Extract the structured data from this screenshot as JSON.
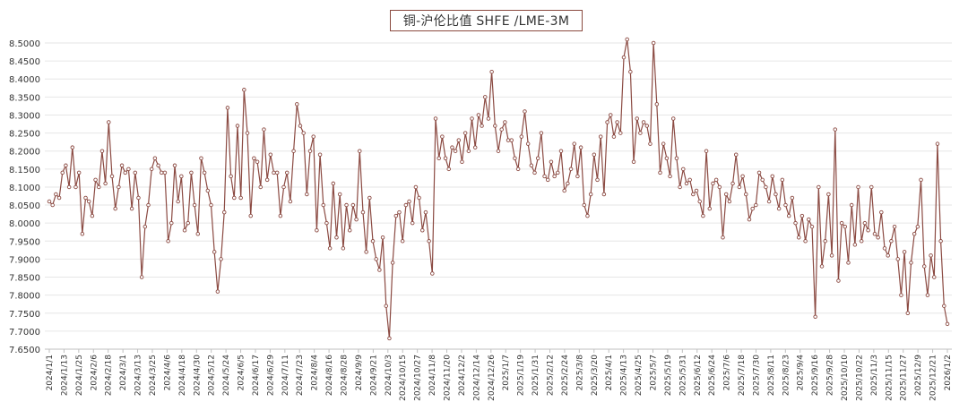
{
  "chart_data": {
    "type": "line",
    "title": "铜-沪伦比值 SHFE /LME-3M",
    "xlabel": "",
    "ylabel": "",
    "ylim": [
      7.65,
      8.5
    ],
    "yticks": [
      "8.5000",
      "8.4500",
      "8.4000",
      "8.3500",
      "8.3000",
      "8.2500",
      "8.2000",
      "8.1500",
      "8.1000",
      "8.0500",
      "8.0000",
      "7.9500",
      "7.9000",
      "7.8500",
      "7.8000",
      "7.7500",
      "7.7000",
      "7.6500"
    ],
    "xticks": [
      "2024/1/1",
      "2024/1/13",
      "2024/1/25",
      "2024/2/6",
      "2024/2/18",
      "2024/3/1",
      "2024/3/13",
      "2024/3/25",
      "2024/4/6",
      "2024/4/18",
      "2024/4/30",
      "2024/5/12",
      "2024/5/24",
      "2024/6/5",
      "2024/6/17",
      "2024/6/29",
      "2024/7/11",
      "2024/7/23",
      "2024/8/4",
      "2024/8/16",
      "2024/8/28",
      "2024/9/9",
      "2024/9/21",
      "2024/10/3",
      "2024/10/15",
      "2024/10/27",
      "2024/11/8",
      "2024/11/20",
      "2024/12/2",
      "2024/12/14",
      "2024/12/26",
      "2025/1/7",
      "2025/1/19",
      "2025/1/31",
      "2025/2/12",
      "2025/2/24",
      "2025/3/8",
      "2025/3/20",
      "2025/4/1",
      "2025/4/13",
      "2025/4/25",
      "2025/5/7",
      "2025/5/19",
      "2025/5/31",
      "2025/6/12",
      "2025/6/24",
      "2025/7/6",
      "2025/7/18",
      "2025/7/30",
      "2025/8/11",
      "2025/8/23",
      "2025/9/4",
      "2025/9/16",
      "2025/9/28",
      "2025/10/10",
      "2025/10/22",
      "2025/11/3",
      "2025/11/15",
      "2025/11/27",
      "2025/12/9",
      "2025/12/21",
      "2026/1/2"
    ],
    "grid": true,
    "legend": "none",
    "colors": {
      "line": "#8b4a42",
      "marker_fill": "#ffffff",
      "grid": "#e6e6e6",
      "title_border": "#8a4a3f"
    },
    "series": [
      {
        "values": [
          8.06,
          8.05,
          8.08,
          8.07,
          8.14,
          8.16,
          8.1,
          8.21,
          8.1,
          8.14,
          7.97,
          8.07,
          8.06,
          8.02,
          8.12,
          8.1,
          8.2,
          8.11,
          8.28,
          8.13,
          8.04,
          8.1,
          8.16,
          8.14,
          8.15,
          8.04,
          8.14,
          8.07,
          7.85,
          7.99,
          8.05,
          8.15,
          8.18,
          8.16,
          8.14,
          8.14,
          7.95,
          8.0,
          8.16,
          8.06,
          8.13,
          7.98,
          8.0,
          8.14,
          8.05,
          7.97,
          8.18,
          8.14,
          8.09,
          8.05,
          7.92,
          7.81,
          7.9,
          8.03,
          8.32,
          8.13,
          8.07,
          8.27,
          8.07,
          8.37,
          8.25,
          8.02,
          8.18,
          8.17,
          8.1,
          8.26,
          8.12,
          8.19,
          8.14,
          8.14,
          8.02,
          8.1,
          8.14,
          8.06,
          8.2,
          8.33,
          8.27,
          8.25,
          8.08,
          8.2,
          8.24,
          7.98,
          8.19,
          8.05,
          8.0,
          7.93,
          8.11,
          7.96,
          8.08,
          7.93,
          8.05,
          7.98,
          8.05,
          8.01,
          8.2,
          8.03,
          7.92,
          8.07,
          7.95,
          7.9,
          7.87,
          7.96,
          7.77,
          7.68,
          7.89,
          8.02,
          8.03,
          7.95,
          8.05,
          8.06,
          8.0,
          8.1,
          8.07,
          7.98,
          8.03,
          7.95,
          7.86,
          8.29,
          8.18,
          8.24,
          8.18,
          8.15,
          8.21,
          8.2,
          8.23,
          8.17,
          8.25,
          8.2,
          8.29,
          8.21,
          8.3,
          8.27,
          8.35,
          8.29,
          8.42,
          8.27,
          8.2,
          8.26,
          8.28,
          8.23,
          8.23,
          8.18,
          8.15,
          8.24,
          8.31,
          8.22,
          8.16,
          8.14,
          8.18,
          8.25,
          8.13,
          8.12,
          8.17,
          8.13,
          8.14,
          8.2,
          8.09,
          8.11,
          8.15,
          8.22,
          8.13,
          8.21,
          8.05,
          8.02,
          8.08,
          8.19,
          8.12,
          8.24,
          8.08,
          8.28,
          8.3,
          8.24,
          8.28,
          8.25,
          8.46,
          8.51,
          8.42,
          8.17,
          8.29,
          8.25,
          8.28,
          8.27,
          8.22,
          8.5,
          8.33,
          8.14,
          8.22,
          8.18,
          8.13,
          8.29,
          8.18,
          8.1,
          8.15,
          8.11,
          8.12,
          8.08,
          8.09,
          8.06,
          8.02,
          8.2,
          8.04,
          8.11,
          8.12,
          8.1,
          7.96,
          8.08,
          8.06,
          8.11,
          8.19,
          8.1,
          8.13,
          8.08,
          8.01,
          8.04,
          8.05,
          8.14,
          8.12,
          8.1,
          8.06,
          8.13,
          8.08,
          8.04,
          8.12,
          8.05,
          8.02,
          8.07,
          8.0,
          7.96,
          8.02,
          7.95,
          8.01,
          7.99,
          7.74,
          8.1,
          7.88,
          7.95,
          8.08,
          7.91,
          8.26,
          7.84,
          8.0,
          7.99,
          7.89,
          8.05,
          7.94,
          8.1,
          7.95,
          8.0,
          7.98,
          8.1,
          7.97,
          7.96,
          8.03,
          7.93,
          7.91,
          7.95,
          7.99,
          7.9,
          7.8,
          7.92,
          7.75,
          7.89,
          7.97,
          7.99,
          8.12,
          7.88,
          7.8,
          7.91,
          7.85,
          8.22,
          7.95,
          7.77,
          7.72
        ]
      }
    ]
  }
}
